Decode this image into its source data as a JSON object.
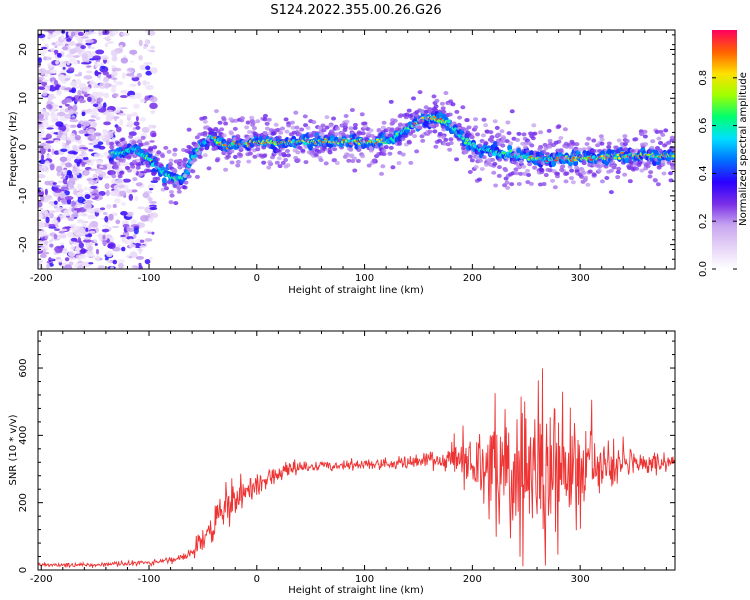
{
  "page": {
    "title": "S124.2022.355.00.26.G26"
  },
  "chart_data": [
    {
      "type": "heatmap",
      "title": "S124.2022.355.00.26.G26",
      "xlabel": "Height of straight line (km)",
      "ylabel": "Frequency (Hz)",
      "xlim": [
        -203,
        388
      ],
      "ylim": [
        -25,
        24
      ],
      "xticks": [
        -200,
        -100,
        0,
        100,
        200,
        300
      ],
      "yticks": [
        -20,
        -10,
        0,
        10,
        20
      ],
      "colorbar": {
        "label": "Normalized spectral amplitude",
        "range": [
          0.0,
          1.0
        ],
        "ticks": [
          "0.0",
          "0.2",
          "0.4",
          "0.6",
          "0.8"
        ],
        "tick_values": [
          0.0,
          0.2,
          0.4,
          0.6,
          0.8
        ],
        "colormap": [
          "#ffffff",
          "#e6d4f7",
          "#c8a6f0",
          "#7a2fe8",
          "#2a00ff",
          "#0070ff",
          "#00e0ff",
          "#00ff70",
          "#a0ff00",
          "#ffe000",
          "#ff6000",
          "#ff0060"
        ]
      },
      "ridge": {
        "x": [
          -130,
          -115,
          -100,
          -85,
          -75,
          -68,
          -60,
          -50,
          -42,
          -30,
          -20,
          0,
          40,
          80,
          110,
          125,
          140,
          155,
          165,
          180,
          195,
          210,
          230,
          260,
          300,
          340,
          388
        ],
        "y": [
          -1.5,
          -0.5,
          -2.5,
          -5.5,
          -6.5,
          -6.5,
          -2.5,
          1.0,
          2.0,
          0.2,
          0.8,
          0.8,
          1.0,
          1.2,
          1.0,
          1.5,
          4.0,
          5.8,
          5.8,
          4.5,
          1.0,
          -0.5,
          -1.5,
          -2.4,
          -2.4,
          -1.8,
          -1.6
        ]
      },
      "noise_region": {
        "x_range": [
          -203,
          -95
        ],
        "y_range": [
          -25,
          24
        ]
      }
    },
    {
      "type": "line",
      "xlabel": "Height of straight line (km)",
      "ylabel": "SNR (10 * v/v)",
      "xlim": [
        -203,
        388
      ],
      "ylim": [
        0,
        710
      ],
      "xticks": [
        -200,
        -100,
        0,
        100,
        200,
        300
      ],
      "yticks": [
        0,
        200,
        400,
        600
      ],
      "color": "#ee3333",
      "envelope": {
        "x": [
          -203,
          -150,
          -100,
          -70,
          -60,
          -50,
          -40,
          -30,
          -20,
          -10,
          0,
          20,
          40,
          60,
          100,
          150,
          180,
          200,
          220,
          240,
          260,
          270,
          275,
          280,
          300,
          340,
          388
        ],
        "mean": [
          15,
          15,
          22,
          35,
          55,
          90,
          140,
          180,
          210,
          230,
          250,
          285,
          305,
          310,
          312,
          320,
          330,
          330,
          320,
          300,
          290,
          300,
          300,
          300,
          300,
          310,
          320
        ],
        "amp": [
          5,
          6,
          8,
          10,
          20,
          35,
          50,
          55,
          55,
          45,
          35,
          22,
          18,
          15,
          14,
          18,
          40,
          90,
          170,
          220,
          250,
          290,
          300,
          200,
          140,
          45,
          25
        ]
      }
    }
  ]
}
